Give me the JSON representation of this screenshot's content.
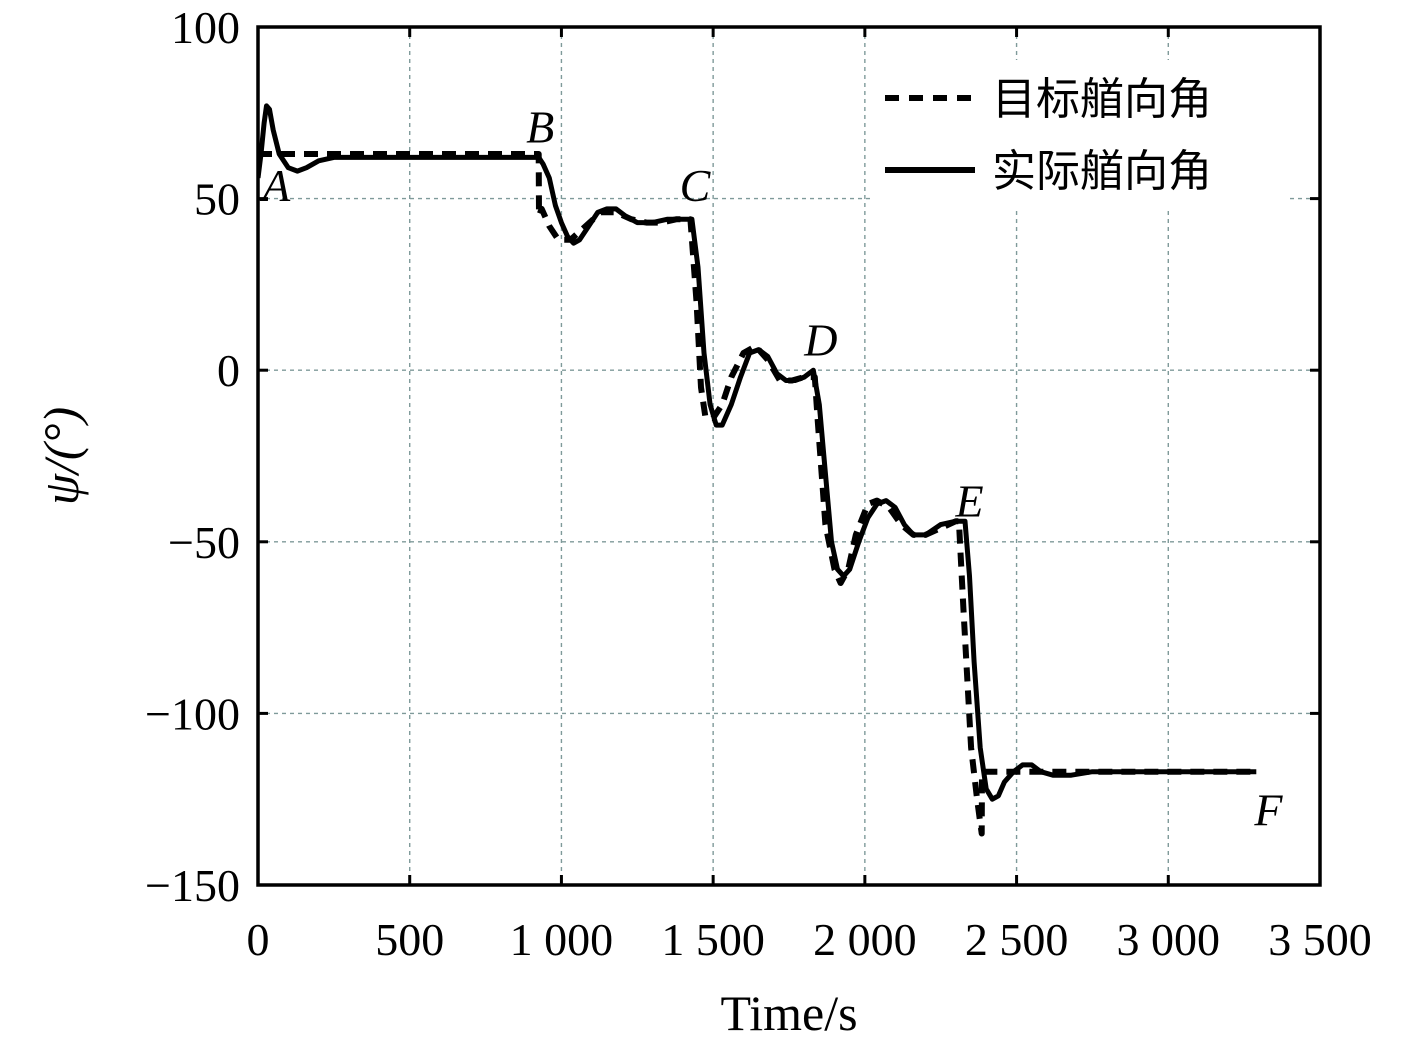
{
  "chart_data": {
    "type": "line",
    "xlabel": "Time/s",
    "ylabel": "ψ/(°)",
    "xlim": [
      0,
      3500
    ],
    "ylim": [
      -150,
      100
    ],
    "xticks": [
      0,
      500,
      1000,
      1500,
      2000,
      2500,
      3000,
      3500
    ],
    "xtick_labels": [
      "0",
      "500",
      "1 000",
      "1 500",
      "2 000",
      "2 500",
      "3 000",
      "3 500"
    ],
    "yticks": [
      100,
      50,
      0,
      -50,
      -100,
      -150
    ],
    "ytick_labels": [
      "100",
      "50",
      "0",
      "−50",
      "−100",
      "−150"
    ],
    "grid": true,
    "legend_position": "top-right",
    "series": [
      {
        "name": "目标艏向角",
        "style": "dashed",
        "color": "#000000",
        "points": [
          [
            0,
            63
          ],
          [
            100,
            63
          ],
          [
            300,
            63
          ],
          [
            500,
            63
          ],
          [
            700,
            63
          ],
          [
            925,
            63
          ],
          [
            926,
            45
          ],
          [
            935,
            47
          ],
          [
            960,
            42
          ],
          [
            990,
            38
          ],
          [
            1030,
            38
          ],
          [
            1080,
            42
          ],
          [
            1130,
            46
          ],
          [
            1180,
            46
          ],
          [
            1230,
            44
          ],
          [
            1280,
            43
          ],
          [
            1330,
            43
          ],
          [
            1380,
            44
          ],
          [
            1415,
            44
          ],
          [
            1425,
            44
          ],
          [
            1445,
            20
          ],
          [
            1460,
            -5
          ],
          [
            1475,
            -14
          ],
          [
            1500,
            -14
          ],
          [
            1530,
            -10
          ],
          [
            1560,
            -2
          ],
          [
            1600,
            5
          ],
          [
            1640,
            7
          ],
          [
            1680,
            3
          ],
          [
            1720,
            -3
          ],
          [
            1760,
            -3
          ],
          [
            1800,
            -2
          ],
          [
            1835,
            -2
          ],
          [
            1845,
            -15
          ],
          [
            1870,
            -45
          ],
          [
            1900,
            -58
          ],
          [
            1920,
            -62
          ],
          [
            1945,
            -58
          ],
          [
            1970,
            -48
          ],
          [
            2010,
            -39
          ],
          [
            2040,
            -38
          ],
          [
            2080,
            -40
          ],
          [
            2120,
            -45
          ],
          [
            2160,
            -48
          ],
          [
            2200,
            -48
          ],
          [
            2250,
            -46
          ],
          [
            2300,
            -44
          ],
          [
            2310,
            -44
          ],
          [
            2325,
            -70
          ],
          [
            2350,
            -110
          ],
          [
            2370,
            -125
          ],
          [
            2385,
            -135
          ],
          [
            2386,
            -117
          ],
          [
            2450,
            -117
          ],
          [
            2500,
            -117
          ],
          [
            2600,
            -117
          ],
          [
            2800,
            -117
          ],
          [
            3000,
            -117
          ],
          [
            3200,
            -117
          ],
          [
            3290,
            -117
          ]
        ]
      },
      {
        "name": "实际艏向角",
        "style": "solid",
        "color": "#000000",
        "points": [
          [
            0,
            56
          ],
          [
            10,
            63
          ],
          [
            20,
            72
          ],
          [
            28,
            77
          ],
          [
            38,
            76
          ],
          [
            50,
            70
          ],
          [
            70,
            63
          ],
          [
            100,
            59
          ],
          [
            130,
            58
          ],
          [
            160,
            59
          ],
          [
            200,
            61
          ],
          [
            250,
            62
          ],
          [
            300,
            62
          ],
          [
            400,
            62
          ],
          [
            500,
            62
          ],
          [
            600,
            62
          ],
          [
            700,
            62
          ],
          [
            800,
            62
          ],
          [
            900,
            62
          ],
          [
            925,
            62
          ],
          [
            940,
            60
          ],
          [
            960,
            56
          ],
          [
            980,
            48
          ],
          [
            1000,
            43
          ],
          [
            1020,
            39
          ],
          [
            1040,
            37
          ],
          [
            1060,
            38
          ],
          [
            1090,
            42
          ],
          [
            1120,
            46
          ],
          [
            1150,
            47
          ],
          [
            1180,
            47
          ],
          [
            1210,
            45
          ],
          [
            1250,
            43
          ],
          [
            1300,
            43
          ],
          [
            1350,
            44
          ],
          [
            1400,
            44
          ],
          [
            1430,
            44
          ],
          [
            1450,
            30
          ],
          [
            1470,
            5
          ],
          [
            1490,
            -10
          ],
          [
            1510,
            -16
          ],
          [
            1530,
            -16
          ],
          [
            1560,
            -10
          ],
          [
            1590,
            -2
          ],
          [
            1620,
            5
          ],
          [
            1650,
            6
          ],
          [
            1680,
            4
          ],
          [
            1710,
            -1
          ],
          [
            1740,
            -3
          ],
          [
            1770,
            -3
          ],
          [
            1800,
            -2
          ],
          [
            1830,
            0
          ],
          [
            1850,
            -10
          ],
          [
            1870,
            -30
          ],
          [
            1890,
            -50
          ],
          [
            1910,
            -58
          ],
          [
            1930,
            -60
          ],
          [
            1950,
            -58
          ],
          [
            1980,
            -50
          ],
          [
            2010,
            -43
          ],
          [
            2040,
            -39
          ],
          [
            2070,
            -38
          ],
          [
            2100,
            -40
          ],
          [
            2130,
            -45
          ],
          [
            2160,
            -48
          ],
          [
            2200,
            -48
          ],
          [
            2250,
            -45
          ],
          [
            2300,
            -44
          ],
          [
            2330,
            -44
          ],
          [
            2345,
            -60
          ],
          [
            2360,
            -85
          ],
          [
            2380,
            -110
          ],
          [
            2400,
            -122
          ],
          [
            2420,
            -125
          ],
          [
            2440,
            -124
          ],
          [
            2460,
            -120
          ],
          [
            2490,
            -117
          ],
          [
            2520,
            -115
          ],
          [
            2550,
            -115
          ],
          [
            2580,
            -117
          ],
          [
            2620,
            -118
          ],
          [
            2680,
            -118
          ],
          [
            2750,
            -117
          ],
          [
            2800,
            -117
          ],
          [
            3000,
            -117
          ],
          [
            3200,
            -117
          ],
          [
            3290,
            -117
          ]
        ]
      }
    ],
    "annotations": [
      {
        "text": "A",
        "x": 60,
        "y": 54
      },
      {
        "text": "B",
        "x": 930,
        "y": 71
      },
      {
        "text": "C",
        "x": 1440,
        "y": 54
      },
      {
        "text": "D",
        "x": 1855,
        "y": 9
      },
      {
        "text": "E",
        "x": 2345,
        "y": -38
      },
      {
        "text": "F",
        "x": 3330,
        "y": -128
      }
    ]
  }
}
